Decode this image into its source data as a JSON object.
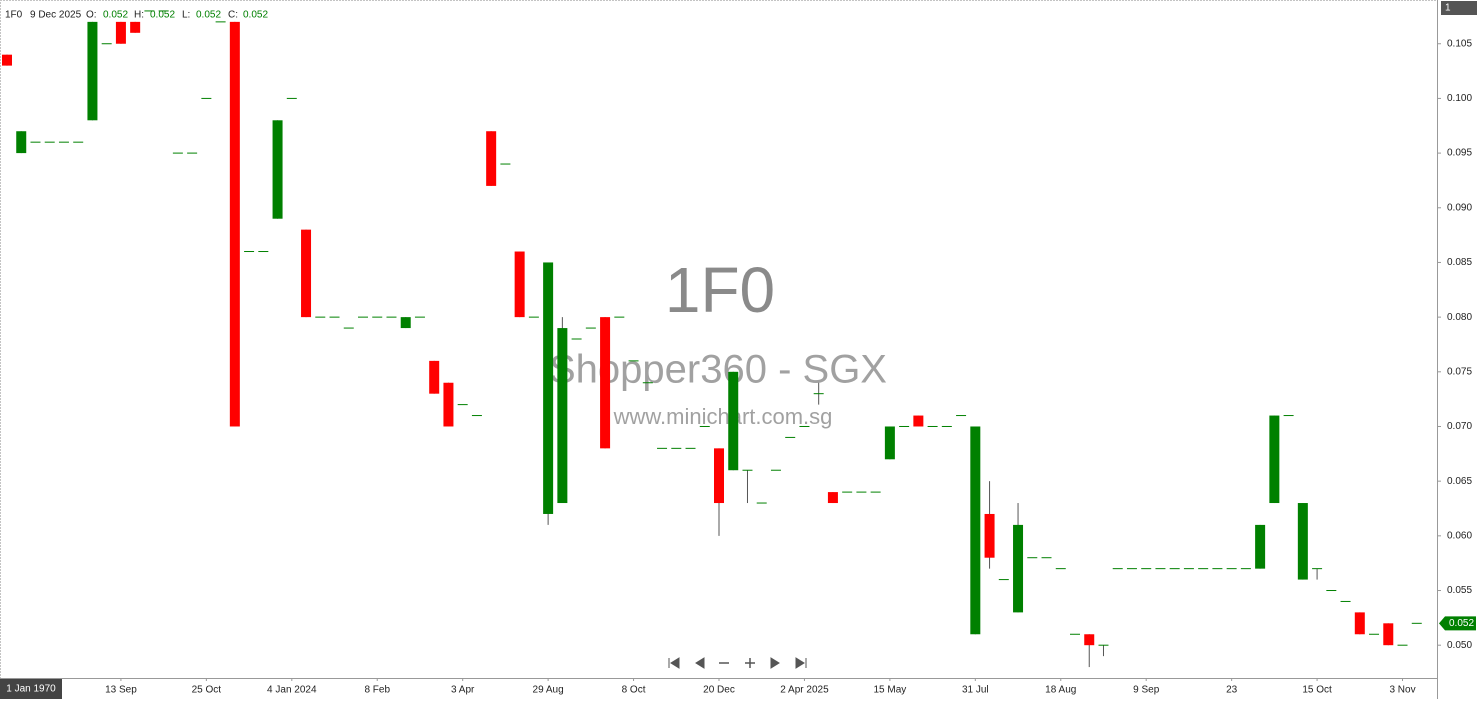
{
  "chart_data": {
    "type": "candlestick",
    "watermark": {
      "symbol": "1F0",
      "name": "Shopper360 - SGX",
      "site": "www.minichart.com.sg"
    },
    "header": {
      "symbol": "1F0",
      "date": "9 Dec 2025",
      "o": "O:",
      "h": "H:",
      "l": "L:",
      "c": "C:"
    },
    "pane_label": "1",
    "crosshair_label": "1 Jan 1970",
    "up_color": "#008000",
    "down_color": "#ff0000",
    "grid": false,
    "ylim": [
      0.047,
      0.109
    ],
    "yticks": [
      {
        "value": 0.05,
        "label": "0.050"
      },
      0.055,
      {
        "value": 0.06,
        "label": "0.060"
      },
      0.065,
      {
        "value": 0.07,
        "label": "0.070"
      },
      0.075,
      {
        "value": 0.08,
        "label": "0.080"
      },
      0.085,
      {
        "value": 0.09,
        "label": "0.090"
      },
      0.095,
      {
        "value": 0.1,
        "label": "0.100"
      },
      0.105
    ],
    "categories": [
      null,
      null,
      null,
      null,
      null,
      null,
      null,
      null,
      "13 Sep",
      null,
      null,
      null,
      null,
      null,
      "25 Oct",
      null,
      null,
      null,
      null,
      null,
      "4 Jan 2024",
      null,
      null,
      null,
      null,
      null,
      "8 Feb",
      null,
      null,
      null,
      null,
      null,
      "3 Apr",
      null,
      null,
      null,
      null,
      null,
      "29 Aug",
      null,
      null,
      null,
      null,
      null,
      "8 Oct",
      null,
      null,
      null,
      null,
      null,
      "20 Dec",
      null,
      null,
      null,
      null,
      null,
      "2 Apr 2025",
      null,
      null,
      null,
      null,
      null,
      "15 May",
      null,
      null,
      null,
      null,
      null,
      "31 Jul",
      null,
      null,
      null,
      null,
      null,
      "18 Aug",
      null,
      null,
      null,
      null,
      null,
      "9 Sep",
      null,
      null,
      null,
      null,
      null,
      "23",
      null,
      null,
      null,
      null,
      null,
      "15 Oct",
      null,
      null,
      null,
      null,
      null,
      "3 Nov",
      null
    ],
    "ohlc": [
      [
        0.104,
        0.104,
        0.103,
        0.103
      ],
      [
        0.095,
        0.097,
        0.095,
        0.097
      ],
      [
        0.096,
        0.096,
        0.096,
        0.096
      ],
      [
        0.096,
        0.096,
        0.096,
        0.096
      ],
      [
        0.096,
        0.096,
        0.096,
        0.096
      ],
      [
        0.096,
        0.096,
        0.096,
        0.096
      ],
      [
        0.098,
        0.107,
        0.098,
        0.107
      ],
      [
        0.105,
        0.105,
        0.105,
        0.105
      ],
      [
        0.107,
        0.107,
        0.105,
        0.105
      ],
      [
        0.107,
        0.107,
        0.106,
        0.106
      ],
      [
        0.108,
        0.108,
        0.108,
        0.108
      ],
      [
        0.108,
        0.108,
        0.108,
        0.108
      ],
      [
        0.095,
        0.095,
        0.095,
        0.095
      ],
      [
        0.095,
        0.095,
        0.095,
        0.095
      ],
      [
        0.1,
        0.1,
        0.1,
        0.1
      ],
      [
        0.107,
        0.107,
        0.107,
        0.107
      ],
      [
        0.107,
        0.107,
        0.07,
        0.07
      ],
      [
        0.086,
        0.086,
        0.086,
        0.086
      ],
      [
        0.086,
        0.086,
        0.086,
        0.086
      ],
      [
        0.089,
        0.098,
        0.089,
        0.098
      ],
      [
        0.1,
        0.1,
        0.1,
        0.1
      ],
      [
        0.088,
        0.088,
        0.08,
        0.08
      ],
      [
        0.08,
        0.08,
        0.08,
        0.08
      ],
      [
        0.08,
        0.08,
        0.08,
        0.08
      ],
      [
        0.079,
        0.079,
        0.079,
        0.079
      ],
      [
        0.08,
        0.08,
        0.08,
        0.08
      ],
      [
        0.08,
        0.08,
        0.08,
        0.08
      ],
      [
        0.08,
        0.08,
        0.08,
        0.08
      ],
      [
        0.079,
        0.08,
        0.079,
        0.08
      ],
      [
        0.08,
        0.08,
        0.08,
        0.08
      ],
      [
        0.076,
        0.076,
        0.073,
        0.073
      ],
      [
        0.074,
        0.074,
        0.07,
        0.07
      ],
      [
        0.072,
        0.072,
        0.072,
        0.072
      ],
      [
        0.071,
        0.071,
        0.071,
        0.071
      ],
      [
        0.097,
        0.097,
        0.092,
        0.092
      ],
      [
        0.094,
        0.094,
        0.094,
        0.094
      ],
      [
        0.086,
        0.086,
        0.08,
        0.08
      ],
      [
        0.08,
        0.08,
        0.08,
        0.08
      ],
      [
        0.062,
        0.085,
        0.061,
        0.085
      ],
      [
        0.063,
        0.08,
        0.063,
        0.079
      ],
      [
        0.078,
        0.078,
        0.078,
        0.078
      ],
      [
        0.079,
        0.079,
        0.079,
        0.079
      ],
      [
        0.08,
        0.08,
        0.068,
        0.068
      ],
      [
        0.08,
        0.08,
        0.08,
        0.08
      ],
      [
        0.076,
        0.076,
        0.076,
        0.076
      ],
      [
        0.074,
        0.074,
        0.074,
        0.074
      ],
      [
        0.068,
        0.068,
        0.068,
        0.068
      ],
      [
        0.068,
        0.068,
        0.068,
        0.068
      ],
      [
        0.068,
        0.068,
        0.068,
        0.068
      ],
      [
        0.07,
        0.07,
        0.07,
        0.07
      ],
      [
        0.068,
        0.068,
        0.06,
        0.063
      ],
      [
        0.066,
        0.075,
        0.066,
        0.075
      ],
      [
        0.066,
        0.066,
        0.063,
        0.066
      ],
      [
        0.063,
        0.063,
        0.063,
        0.063
      ],
      [
        0.066,
        0.066,
        0.066,
        0.066
      ],
      [
        0.069,
        0.069,
        0.069,
        0.069
      ],
      [
        0.07,
        0.07,
        0.07,
        0.07
      ],
      [
        0.073,
        0.074,
        0.072,
        0.073
      ],
      [
        0.064,
        0.064,
        0.063,
        0.063
      ],
      [
        0.064,
        0.064,
        0.064,
        0.064
      ],
      [
        0.064,
        0.064,
        0.064,
        0.064
      ],
      [
        0.064,
        0.064,
        0.064,
        0.064
      ],
      [
        0.067,
        0.07,
        0.067,
        0.07
      ],
      [
        0.07,
        0.07,
        0.07,
        0.07
      ],
      [
        0.071,
        0.071,
        0.07,
        0.07
      ],
      [
        0.07,
        0.07,
        0.07,
        0.07
      ],
      [
        0.07,
        0.07,
        0.07,
        0.07
      ],
      [
        0.071,
        0.071,
        0.071,
        0.071
      ],
      [
        0.051,
        0.07,
        0.051,
        0.07
      ],
      [
        0.062,
        0.065,
        0.057,
        0.058
      ],
      [
        0.056,
        0.056,
        0.056,
        0.056
      ],
      [
        0.053,
        0.063,
        0.053,
        0.061
      ],
      [
        0.058,
        0.058,
        0.058,
        0.058
      ],
      [
        0.058,
        0.058,
        0.058,
        0.058
      ],
      [
        0.057,
        0.057,
        0.057,
        0.057
      ],
      [
        0.051,
        0.051,
        0.051,
        0.051
      ],
      [
        0.051,
        0.051,
        0.048,
        0.05
      ],
      [
        0.05,
        0.05,
        0.049,
        0.05
      ],
      [
        0.057,
        0.057,
        0.057,
        0.057
      ],
      [
        0.057,
        0.057,
        0.057,
        0.057
      ],
      [
        0.057,
        0.057,
        0.057,
        0.057
      ],
      [
        0.057,
        0.057,
        0.057,
        0.057
      ],
      [
        0.057,
        0.057,
        0.057,
        0.057
      ],
      [
        0.057,
        0.057,
        0.057,
        0.057
      ],
      [
        0.057,
        0.057,
        0.057,
        0.057
      ],
      [
        0.057,
        0.057,
        0.057,
        0.057
      ],
      [
        0.057,
        0.057,
        0.057,
        0.057
      ],
      [
        0.057,
        0.057,
        0.057,
        0.057
      ],
      [
        0.057,
        0.061,
        0.057,
        0.061
      ],
      [
        0.063,
        0.071,
        0.063,
        0.071
      ],
      [
        0.071,
        0.071,
        0.071,
        0.071
      ],
      [
        0.056,
        0.063,
        0.056,
        0.063
      ],
      [
        0.057,
        0.057,
        0.056,
        0.057
      ],
      [
        0.055,
        0.055,
        0.055,
        0.055
      ],
      [
        0.054,
        0.054,
        0.054,
        0.054
      ],
      [
        0.053,
        0.053,
        0.051,
        0.051
      ],
      [
        0.051,
        0.051,
        0.051,
        0.051
      ],
      [
        0.052,
        0.052,
        0.05,
        0.05
      ],
      [
        0.05,
        0.05,
        0.05,
        0.05
      ],
      [
        0.052,
        0.052,
        0.052,
        0.052
      ]
    ]
  }
}
